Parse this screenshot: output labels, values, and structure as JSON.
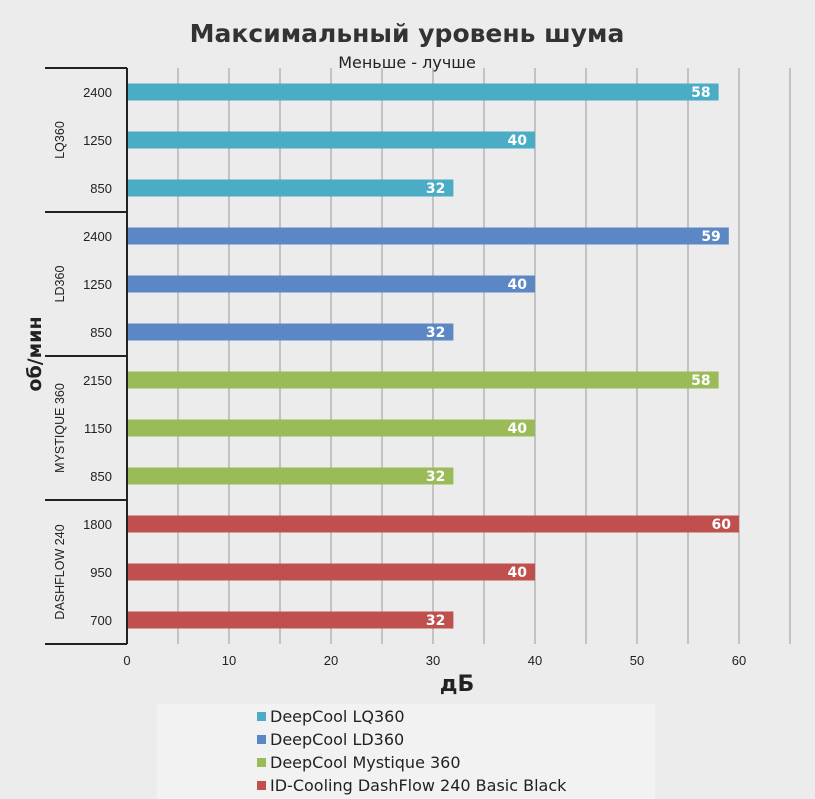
{
  "chart_data": {
    "type": "bar",
    "orientation": "horizontal",
    "title": "Максимальный уровень шума",
    "subtitle": "Меньше - лучше",
    "xlabel": "дБ",
    "ylabel": "об/мин",
    "xlim": [
      0,
      65
    ],
    "xticks": [
      0,
      10,
      20,
      30,
      40,
      50,
      60
    ],
    "grid": true,
    "legend_position": "bottom",
    "groups": [
      {
        "name": "LQ360",
        "series": "DeepCool LQ360",
        "color": "#4bacc6",
        "rows": [
          {
            "rpm": "2400",
            "value": 58
          },
          {
            "rpm": "1250",
            "value": 40
          },
          {
            "rpm": "850",
            "value": 32
          }
        ]
      },
      {
        "name": "LD360",
        "series": "DeepCool LD360",
        "color": "#5b87c5",
        "rows": [
          {
            "rpm": "2400",
            "value": 59
          },
          {
            "rpm": "1250",
            "value": 40
          },
          {
            "rpm": "850",
            "value": 32
          }
        ]
      },
      {
        "name": "MYSTIQUE 360",
        "series": "DeepCool Mystique 360",
        "color": "#9bbb59",
        "rows": [
          {
            "rpm": "2150",
            "value": 58
          },
          {
            "rpm": "1150",
            "value": 40
          },
          {
            "rpm": "850",
            "value": 32
          }
        ]
      },
      {
        "name": "DASHFLOW 240",
        "series": "ID-Cooling DashFlow 240 Basic Black",
        "color": "#c0504d",
        "rows": [
          {
            "rpm": "1800",
            "value": 60
          },
          {
            "rpm": "950",
            "value": 40
          },
          {
            "rpm": "700",
            "value": 32
          }
        ]
      }
    ],
    "legend": [
      {
        "name": "DeepCool LQ360",
        "color": "#4bacc6"
      },
      {
        "name": "DeepCool LD360",
        "color": "#5b87c5"
      },
      {
        "name": "DeepCool Mystique 360",
        "color": "#9bbb59"
      },
      {
        "name": "ID-Cooling DashFlow 240 Basic Black",
        "color": "#c0504d"
      }
    ]
  }
}
